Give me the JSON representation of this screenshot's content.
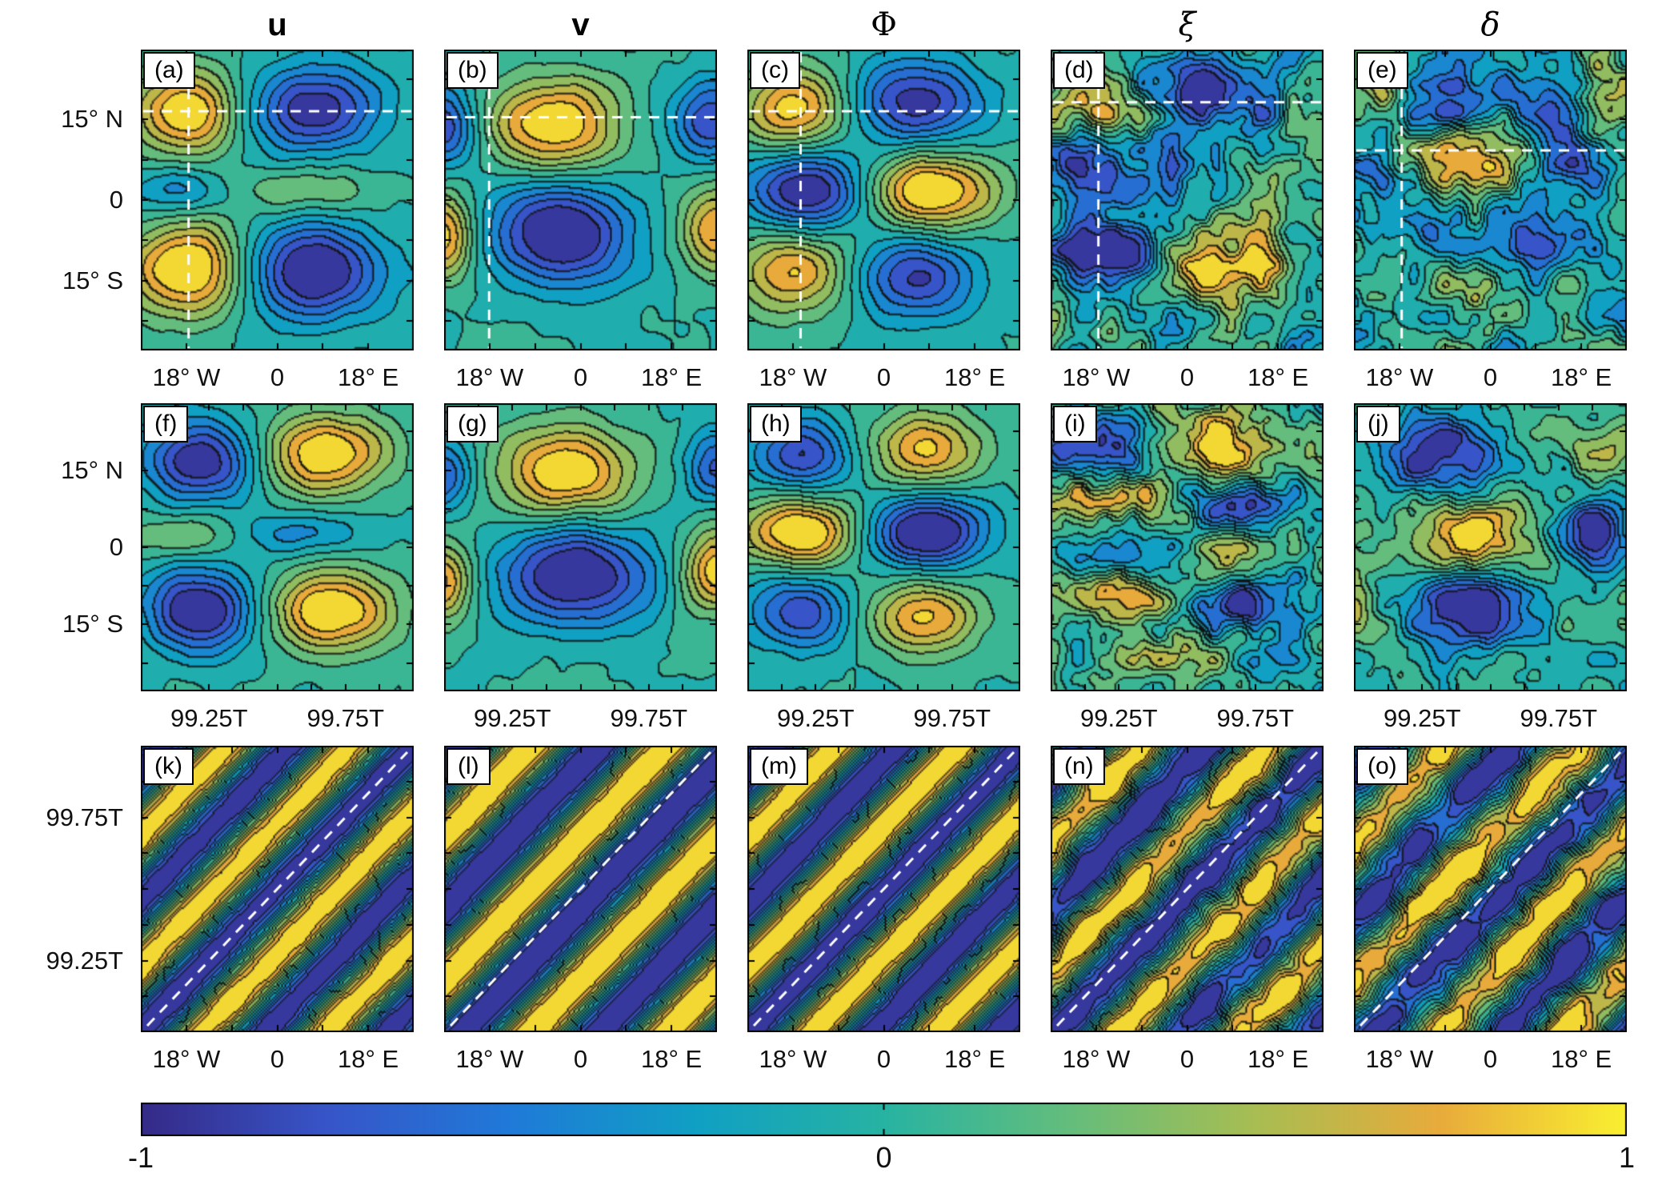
{
  "chart_data": {
    "type": "heatmap",
    "subtype": "filled-contour",
    "title": "",
    "range": [
      -1,
      1
    ],
    "levels": 12,
    "colormap": {
      "name": "parula",
      "stops": [
        "#352a87",
        "#3755c8",
        "#1f7ad8",
        "#10a0c3",
        "#27b3a2",
        "#64bd7c",
        "#a8bd52",
        "#e8ab3b",
        "#f9ef30"
      ]
    },
    "columns": [
      {
        "label": "u",
        "bold": true,
        "serif": false,
        "italic": false
      },
      {
        "label": "v",
        "bold": true,
        "serif": false,
        "italic": false
      },
      {
        "label": "Φ",
        "bold": false,
        "serif": true,
        "italic": false
      },
      {
        "label": "ξ",
        "bold": false,
        "serif": true,
        "italic": true
      },
      {
        "label": "δ",
        "bold": false,
        "serif": true,
        "italic": true
      }
    ],
    "rows": [
      {
        "name": "lat-lon",
        "x_axis": "longitude",
        "y_axis": "latitude",
        "x_ticks": [
          {
            "label": "18° W",
            "pos": 0.167
          },
          {
            "label": "0",
            "pos": 0.5
          },
          {
            "label": "18° E",
            "pos": 0.833
          }
        ],
        "y_ticks": [
          {
            "label": "15° N",
            "pos": 0.232
          },
          {
            "label": "0",
            "pos": 0.5
          },
          {
            "label": "15° S",
            "pos": 0.768
          }
        ],
        "x_tick_marks": [
          0,
          0.167,
          0.333,
          0.5,
          0.667,
          0.833,
          1
        ],
        "y_tick_marks": [
          0.098,
          0.232,
          0.366,
          0.5,
          0.634,
          0.768,
          0.902
        ],
        "panels": [
          {
            "tag": "(a)",
            "seed": 11,
            "noise": {
              "amp": 0.06,
              "scale": 8
            },
            "dash": {
              "v": 0.175,
              "h": 0.205
            },
            "blobs": [
              [
                0.17,
                0.21,
                0.14,
                0.1,
                1.05
              ],
              [
                0.63,
                0.2,
                0.17,
                0.1,
                -1.0
              ],
              [
                0.13,
                0.47,
                0.13,
                0.055,
                -0.45
              ],
              [
                0.6,
                0.47,
                0.17,
                0.055,
                0.38
              ],
              [
                0.17,
                0.73,
                0.15,
                0.11,
                1.15
              ],
              [
                0.63,
                0.74,
                0.17,
                0.11,
                -1.15
              ]
            ]
          },
          {
            "tag": "(b)",
            "seed": 23,
            "noise": {
              "amp": 0.06,
              "scale": 8
            },
            "dash": {
              "v": 0.165,
              "h": 0.225
            },
            "blobs": [
              [
                0.0,
                0.26,
                0.09,
                0.095,
                -0.85
              ],
              [
                0.4,
                0.25,
                0.17,
                0.11,
                1.05
              ],
              [
                0.97,
                0.24,
                0.1,
                0.095,
                -0.8
              ],
              [
                0.0,
                0.62,
                0.08,
                0.1,
                0.95
              ],
              [
                0.43,
                0.61,
                0.18,
                0.12,
                -1.15
              ],
              [
                1.0,
                0.6,
                0.09,
                0.1,
                0.9
              ]
            ]
          },
          {
            "tag": "(c)",
            "seed": 35,
            "noise": {
              "amp": 0.06,
              "scale": 8
            },
            "dash": {
              "v": 0.195,
              "h": 0.205
            },
            "blobs": [
              [
                0.18,
                0.2,
                0.14,
                0.095,
                0.95
              ],
              [
                0.62,
                0.18,
                0.17,
                0.1,
                -0.95
              ],
              [
                0.22,
                0.47,
                0.15,
                0.09,
                -1.1
              ],
              [
                0.68,
                0.47,
                0.17,
                0.09,
                1.1
              ],
              [
                0.17,
                0.74,
                0.15,
                0.095,
                0.85
              ],
              [
                0.62,
                0.76,
                0.16,
                0.095,
                -0.85
              ]
            ]
          },
          {
            "tag": "(d)",
            "seed": 47,
            "noise": {
              "amp": 0.5,
              "scale": 9
            },
            "dash": {
              "v": 0.175,
              "h": 0.175
            },
            "blobs": [
              [
                0.15,
                0.17,
                0.11,
                0.08,
                0.95
              ],
              [
                0.57,
                0.15,
                0.15,
                0.09,
                -1.05
              ],
              [
                0.12,
                0.42,
                0.11,
                0.07,
                -0.75
              ],
              [
                0.5,
                0.44,
                0.13,
                0.07,
                -0.35
              ],
              [
                0.85,
                0.4,
                0.1,
                0.07,
                0.3
              ],
              [
                0.2,
                0.68,
                0.13,
                0.09,
                -1.05
              ],
              [
                0.65,
                0.73,
                0.16,
                0.09,
                1.05
              ]
            ]
          },
          {
            "tag": "(e)",
            "seed": 59,
            "noise": {
              "amp": 0.5,
              "scale": 9
            },
            "dash": {
              "v": 0.175,
              "h": 0.335
            },
            "blobs": [
              [
                0.08,
                0.12,
                0.08,
                0.07,
                0.55
              ],
              [
                0.36,
                0.17,
                0.11,
                0.08,
                -0.8
              ],
              [
                0.72,
                0.2,
                0.12,
                0.08,
                -0.7
              ],
              [
                0.97,
                0.13,
                0.08,
                0.07,
                0.6
              ],
              [
                0.04,
                0.38,
                0.08,
                0.07,
                -0.6
              ],
              [
                0.45,
                0.34,
                0.16,
                0.075,
                1.0
              ],
              [
                0.84,
                0.38,
                0.1,
                0.07,
                -0.75
              ],
              [
                0.3,
                0.6,
                0.11,
                0.08,
                -0.7
              ],
              [
                0.7,
                0.63,
                0.12,
                0.08,
                -0.55
              ],
              [
                0.5,
                0.8,
                0.14,
                0.07,
                0.35
              ]
            ]
          }
        ]
      },
      {
        "name": "lat-time",
        "x_axis": "time",
        "y_axis": "latitude",
        "x_ticks": [
          {
            "label": "99.25T",
            "pos": 0.25
          },
          {
            "label": "99.75T",
            "pos": 0.75
          }
        ],
        "y_ticks": [
          {
            "label": "15° N",
            "pos": 0.232
          },
          {
            "label": "0",
            "pos": 0.5
          },
          {
            "label": "15° S",
            "pos": 0.768
          }
        ],
        "x_tick_marks": [
          0.125,
          0.25,
          0.375,
          0.5,
          0.625,
          0.75,
          0.875
        ],
        "y_tick_marks": [
          0.098,
          0.232,
          0.366,
          0.5,
          0.634,
          0.768,
          0.902
        ],
        "panels": [
          {
            "tag": "(f)",
            "seed": 71,
            "noise": {
              "amp": 0.07,
              "scale": 8
            },
            "blobs": [
              [
                0.22,
                0.2,
                0.14,
                0.1,
                -1.05
              ],
              [
                0.68,
                0.18,
                0.16,
                0.1,
                1.05
              ],
              [
                0.15,
                0.46,
                0.14,
                0.055,
                0.4
              ],
              [
                0.6,
                0.46,
                0.16,
                0.055,
                -0.42
              ],
              [
                0.22,
                0.72,
                0.14,
                0.1,
                -1.1
              ],
              [
                0.7,
                0.72,
                0.16,
                0.1,
                1.1
              ]
            ]
          },
          {
            "tag": "(g)",
            "seed": 83,
            "noise": {
              "amp": 0.07,
              "scale": 8
            },
            "blobs": [
              [
                0.0,
                0.25,
                0.08,
                0.09,
                -0.7
              ],
              [
                0.45,
                0.24,
                0.18,
                0.11,
                1.05
              ],
              [
                1.0,
                0.22,
                0.08,
                0.09,
                -0.7
              ],
              [
                0.0,
                0.62,
                0.08,
                0.1,
                0.85
              ],
              [
                0.48,
                0.6,
                0.19,
                0.12,
                -1.15
              ],
              [
                1.0,
                0.58,
                0.09,
                0.1,
                0.95
              ]
            ]
          },
          {
            "tag": "(h)",
            "seed": 95,
            "noise": {
              "amp": 0.07,
              "scale": 8
            },
            "blobs": [
              [
                0.2,
                0.18,
                0.13,
                0.09,
                -0.85
              ],
              [
                0.66,
                0.16,
                0.15,
                0.09,
                0.85
              ],
              [
                0.2,
                0.45,
                0.14,
                0.085,
                1.15
              ],
              [
                0.66,
                0.45,
                0.15,
                0.085,
                -1.15
              ],
              [
                0.2,
                0.73,
                0.13,
                0.09,
                -0.8
              ],
              [
                0.64,
                0.74,
                0.15,
                0.09,
                0.85
              ]
            ]
          },
          {
            "tag": "(i)",
            "seed": 107,
            "noise": {
              "amp": 0.4,
              "scale": 10
            },
            "blobs": [
              [
                0.15,
                0.14,
                0.12,
                0.075,
                -0.95
              ],
              [
                0.62,
                0.13,
                0.16,
                0.08,
                1.0
              ],
              [
                0.22,
                0.34,
                0.17,
                0.05,
                0.8
              ],
              [
                0.7,
                0.36,
                0.16,
                0.05,
                -0.75
              ],
              [
                0.2,
                0.52,
                0.15,
                0.05,
                -0.65
              ],
              [
                0.68,
                0.52,
                0.14,
                0.05,
                0.5
              ],
              [
                0.25,
                0.68,
                0.17,
                0.055,
                0.9
              ],
              [
                0.7,
                0.7,
                0.16,
                0.06,
                -1.0
              ],
              [
                0.45,
                0.86,
                0.15,
                0.05,
                0.5
              ],
              [
                0.85,
                0.88,
                0.1,
                0.05,
                -0.4
              ]
            ]
          },
          {
            "tag": "(j)",
            "seed": 119,
            "noise": {
              "amp": 0.3,
              "scale": 9
            },
            "blobs": [
              [
                0.33,
                0.18,
                0.16,
                0.1,
                -0.95
              ],
              [
                0.9,
                0.17,
                0.1,
                0.08,
                0.5
              ],
              [
                0.02,
                0.2,
                0.07,
                0.07,
                0.3
              ],
              [
                0.42,
                0.45,
                0.15,
                0.08,
                0.95
              ],
              [
                0.88,
                0.44,
                0.1,
                0.085,
                -0.95
              ],
              [
                0.42,
                0.72,
                0.15,
                0.095,
                -0.95
              ],
              [
                0.0,
                0.7,
                0.06,
                0.08,
                0.45
              ],
              [
                0.95,
                0.75,
                0.08,
                0.07,
                0.35
              ]
            ]
          }
        ]
      },
      {
        "name": "time-lon",
        "x_axis": "longitude",
        "y_axis": "time",
        "x_ticks": [
          {
            "label": "18° W",
            "pos": 0.167
          },
          {
            "label": "0",
            "pos": 0.5
          },
          {
            "label": "18° E",
            "pos": 0.833
          }
        ],
        "y_ticks": [
          {
            "label": "99.75T",
            "pos": 0.25
          },
          {
            "label": "99.25T",
            "pos": 0.75
          }
        ],
        "x_tick_marks": [
          0,
          0.167,
          0.333,
          0.5,
          0.667,
          0.833,
          1
        ],
        "y_tick_marks": [
          0.125,
          0.25,
          0.375,
          0.5,
          0.625,
          0.75,
          0.875
        ],
        "panels": [
          {
            "tag": "(k)",
            "seed": 131,
            "noise": {
              "amp": 0.12,
              "scale": 10
            },
            "dash": "diag",
            "stripes": {
              "m": 2.2,
              "p": 0.0,
              "amp": 1.05
            }
          },
          {
            "tag": "(l)",
            "seed": 143,
            "noise": {
              "amp": 0.08,
              "scale": 10
            },
            "dash": "diag",
            "stripes": {
              "m": 2.0,
              "p": 0.9,
              "amp": 1.15
            }
          },
          {
            "tag": "(m)",
            "seed": 155,
            "noise": {
              "amp": 0.1,
              "scale": 10
            },
            "dash": "diag",
            "stripes": {
              "m": 2.2,
              "p": 0.15,
              "amp": 1.1
            }
          },
          {
            "tag": "(n)",
            "seed": 167,
            "noise": {
              "amp": 0.38,
              "scale": 9
            },
            "dash": "diag",
            "stripes": {
              "m": 2.2,
              "p": 0.35,
              "amp": 1.0
            }
          },
          {
            "tag": "(o)",
            "seed": 179,
            "noise": {
              "amp": 0.42,
              "scale": 9
            },
            "dash": "diag",
            "stripes": {
              "m": 2.1,
              "p": 0.85,
              "amp": 0.95
            }
          }
        ]
      }
    ],
    "colorbar": {
      "ticks": [
        {
          "label": "-1",
          "pos": 0
        },
        {
          "label": "0",
          "pos": 0.5
        },
        {
          "label": "1",
          "pos": 1
        }
      ]
    }
  }
}
